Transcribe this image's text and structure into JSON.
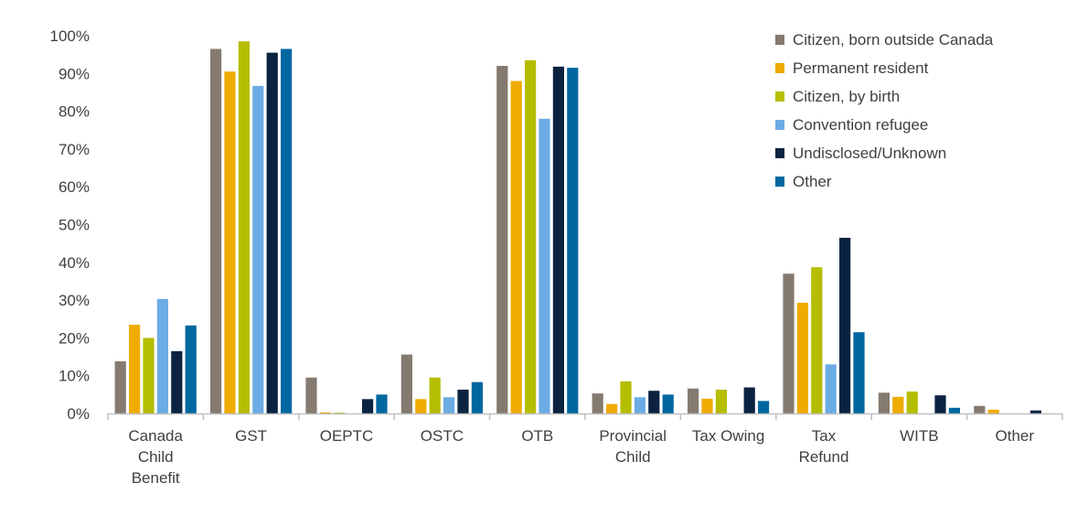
{
  "chart_data": {
    "type": "bar",
    "title": "",
    "xlabel": "",
    "ylabel": "",
    "ylim": [
      0,
      100
    ],
    "y_ticks": [
      "0%",
      "10%",
      "20%",
      "30%",
      "40%",
      "50%",
      "60%",
      "70%",
      "80%",
      "90%",
      "100%"
    ],
    "grid": false,
    "legend_position": "top-right",
    "categories": [
      [
        "Canada",
        "Child",
        "Benefit"
      ],
      [
        "GST"
      ],
      [
        "OEPTC"
      ],
      [
        "OSTC"
      ],
      [
        "OTB"
      ],
      [
        "Provincial",
        "Child"
      ],
      [
        "Tax Owing"
      ],
      [
        "Tax",
        "Refund"
      ],
      [
        "WITB"
      ],
      [
        "Other"
      ]
    ],
    "series": [
      {
        "name": "Citizen, born outside Canada",
        "color": "#857A70",
        "values": [
          13.8,
          96.5,
          9.5,
          15.6,
          92.0,
          5.3,
          6.6,
          37.0,
          5.5,
          2.0
        ]
      },
      {
        "name": "Permanent resident",
        "color": "#F0AB00",
        "values": [
          23.5,
          90.5,
          0.3,
          3.8,
          88.0,
          2.5,
          3.9,
          29.3,
          4.4,
          1.0
        ]
      },
      {
        "name": "Citizen, by birth",
        "color": "#B5BD00",
        "values": [
          20.0,
          98.5,
          0.2,
          9.5,
          93.5,
          8.5,
          6.3,
          38.7,
          5.8,
          0.0
        ]
      },
      {
        "name": "Convention refugee",
        "color": "#6CACE4",
        "values": [
          30.3,
          86.7,
          0.0,
          4.3,
          78.0,
          4.3,
          0.0,
          13.0,
          0.0,
          0.0
        ]
      },
      {
        "name": "Undisclosed/Unknown",
        "color": "#0B2341",
        "values": [
          16.5,
          95.5,
          3.8,
          6.3,
          91.8,
          6.0,
          6.9,
          46.5,
          4.8,
          0.8
        ]
      },
      {
        "name": "Other",
        "color": "#0067A0",
        "values": [
          23.3,
          96.5,
          5.0,
          8.3,
          91.5,
          5.0,
          3.3,
          21.5,
          1.5,
          0.0
        ]
      }
    ]
  }
}
